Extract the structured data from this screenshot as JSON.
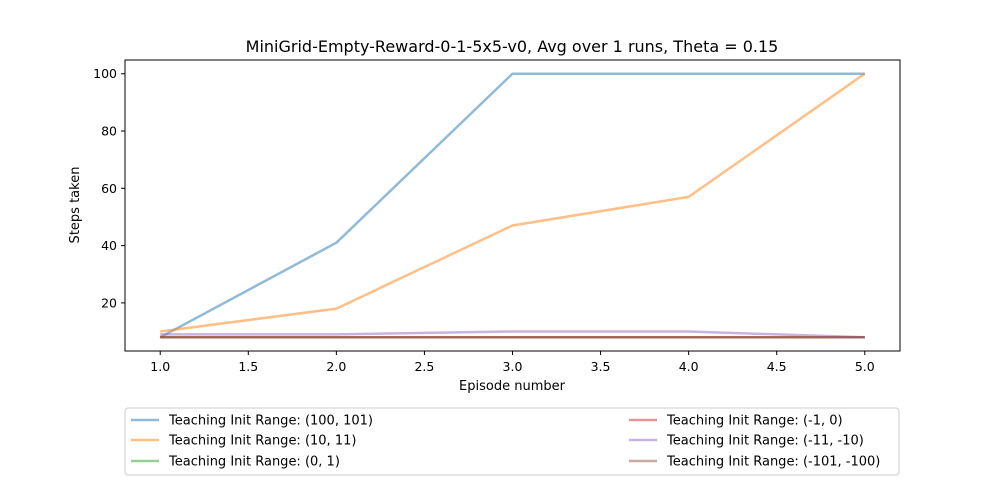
{
  "chart_data": {
    "type": "line",
    "title": "MiniGrid-Empty-Reward-0-1-5x5-v0, Avg over 1 runs, Theta = 0.15",
    "xlabel": "Episode number",
    "ylabel": "Steps taken",
    "xlim": [
      0.8,
      5.2
    ],
    "ylim": [
      3.2,
      104.8
    ],
    "xticks": [
      1.0,
      1.5,
      2.0,
      2.5,
      3.0,
      3.5,
      4.0,
      4.5,
      5.0
    ],
    "xtick_labels": [
      "1.0",
      "1.5",
      "2.0",
      "2.5",
      "3.0",
      "3.5",
      "4.0",
      "4.5",
      "5.0"
    ],
    "yticks": [
      20,
      40,
      60,
      80,
      100
    ],
    "ytick_labels": [
      "20",
      "40",
      "60",
      "80",
      "100"
    ],
    "grid": false,
    "legend_position": "below",
    "x": [
      1,
      2,
      3,
      4,
      5
    ],
    "series": [
      {
        "name": "Teaching Init Range: (100, 101)",
        "color": "#1f77b4",
        "values": [
          8,
          41,
          100,
          100,
          100
        ]
      },
      {
        "name": "Teaching Init Range: (10, 11)",
        "color": "#ff7f0e",
        "values": [
          10,
          18,
          47,
          57,
          100
        ]
      },
      {
        "name": "Teaching Init Range: (0, 1)",
        "color": "#2ca02c",
        "values": [
          8,
          8,
          8,
          8,
          8
        ]
      },
      {
        "name": "Teaching Init Range: (-1, 0)",
        "color": "#d62728",
        "values": [
          8,
          8,
          8,
          8,
          8
        ]
      },
      {
        "name": "Teaching Init Range: (-11, -10)",
        "color": "#9467bd",
        "values": [
          9,
          9,
          10,
          10,
          8
        ]
      },
      {
        "name": "Teaching Init Range: (-101, -100)",
        "color": "#8c564b",
        "values": [
          8,
          8,
          8,
          8,
          8
        ]
      }
    ]
  }
}
